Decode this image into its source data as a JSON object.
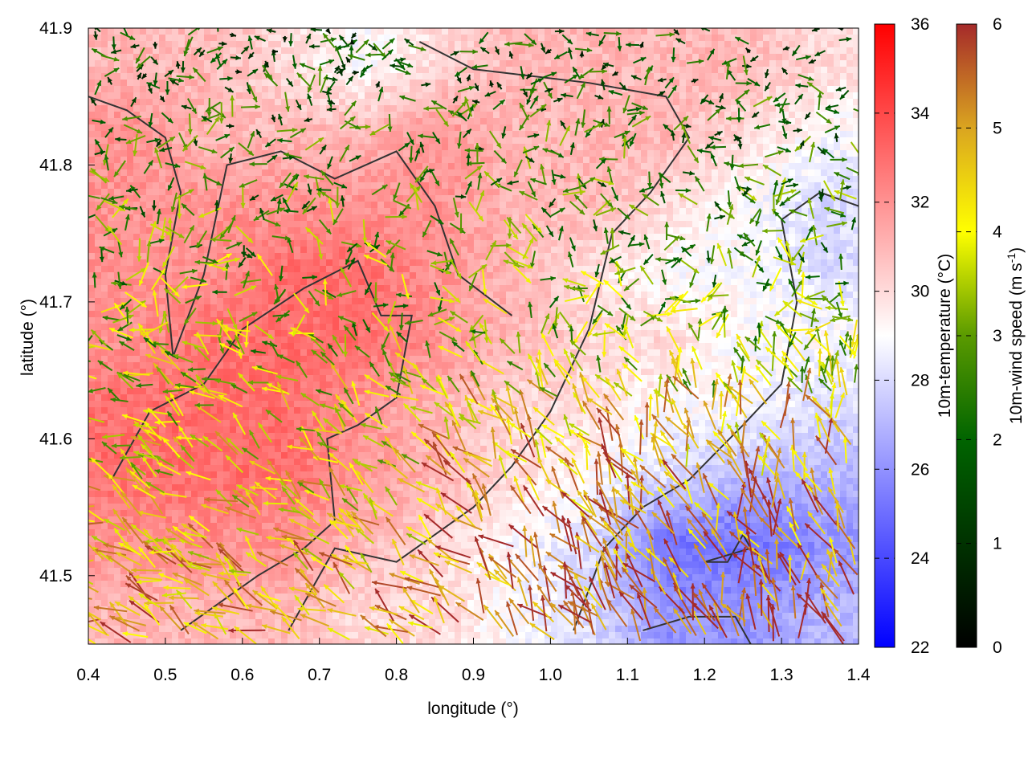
{
  "chart_data": {
    "type": "heatmap",
    "overlay": "vector",
    "xlabel": "longitude (°)",
    "ylabel": "latitude (°)",
    "xlim": [
      0.4,
      1.4
    ],
    "ylim": [
      41.45,
      41.9
    ],
    "xticks": [
      "0.4",
      "0.5",
      "0.6",
      "0.7",
      "0.8",
      "0.9",
      "1.0",
      "1.1",
      "1.2",
      "1.3",
      "1.4"
    ],
    "yticks": [
      "41.5",
      "41.6",
      "41.7",
      "41.8",
      "41.9"
    ],
    "temperature": {
      "label": "10m-temperature (°C)",
      "range": [
        22,
        36
      ],
      "ticks": [
        "22",
        "24",
        "26",
        "28",
        "30",
        "32",
        "34",
        "36"
      ],
      "colors": [
        "#0000ff",
        "#ffffff",
        "#ff0000"
      ],
      "grid_lon": [
        0.45,
        0.55,
        0.65,
        0.75,
        0.85,
        0.95,
        1.05,
        1.15,
        1.25,
        1.35
      ],
      "grid_lat": [
        41.875,
        41.825,
        41.775,
        41.725,
        41.675,
        41.625,
        41.575,
        41.525,
        41.475
      ],
      "values": [
        [
          31,
          31,
          30,
          29,
          30,
          31,
          31,
          31,
          31,
          30
        ],
        [
          32,
          31,
          31,
          31,
          32,
          31,
          31,
          31,
          30,
          29
        ],
        [
          32,
          32,
          32,
          32,
          32,
          31,
          31,
          30,
          29,
          28
        ],
        [
          32,
          32,
          33,
          33,
          32,
          31,
          30,
          29,
          29,
          28
        ],
        [
          32,
          33,
          33,
          33,
          32,
          31,
          30,
          30,
          29,
          29
        ],
        [
          33,
          33,
          33,
          32,
          31,
          30,
          30,
          29,
          29,
          28
        ],
        [
          33,
          33,
          33,
          32,
          31,
          30,
          29,
          28,
          27,
          27
        ],
        [
          32,
          32,
          32,
          31,
          30,
          29,
          28,
          25,
          25,
          26
        ],
        [
          31,
          31,
          31,
          30,
          30,
          29,
          28,
          26,
          26,
          27
        ]
      ]
    },
    "wind": {
      "label_main": "10m-wind speed (m s",
      "label_exp": "-1",
      "label_end": ")",
      "range": [
        0,
        6
      ],
      "ticks": [
        "0",
        "1",
        "2",
        "3",
        "4",
        "5",
        "6"
      ],
      "colors": [
        "#000000",
        "#006400",
        "#5a9a00",
        "#ffff00",
        "#daa520",
        "#a52a2a"
      ]
    },
    "contours": [
      [
        [
          0.4,
          41.85
        ],
        [
          0.45,
          41.84
        ],
        [
          0.5,
          41.82
        ],
        [
          0.52,
          41.78
        ],
        [
          0.5,
          41.72
        ],
        [
          0.51,
          41.66
        ],
        [
          0.55,
          41.72
        ],
        [
          0.58,
          41.8
        ],
        [
          0.65,
          41.81
        ],
        [
          0.72,
          41.79
        ],
        [
          0.8,
          41.81
        ],
        [
          0.85,
          41.77
        ],
        [
          0.88,
          41.72
        ],
        [
          0.95,
          41.69
        ]
      ],
      [
        [
          0.43,
          41.57
        ],
        [
          0.48,
          41.62
        ],
        [
          0.55,
          41.64
        ],
        [
          0.6,
          41.68
        ],
        [
          0.68,
          41.71
        ],
        [
          0.75,
          41.73
        ],
        [
          0.78,
          41.69
        ],
        [
          0.82,
          41.69
        ],
        [
          0.8,
          41.63
        ],
        [
          0.75,
          41.61
        ],
        [
          0.71,
          41.6
        ],
        [
          0.72,
          41.54
        ],
        [
          0.68,
          41.52
        ],
        [
          0.62,
          41.5
        ],
        [
          0.57,
          41.48
        ],
        [
          0.52,
          41.46
        ]
      ],
      [
        [
          0.66,
          41.46
        ],
        [
          0.72,
          41.52
        ],
        [
          0.8,
          41.51
        ],
        [
          0.85,
          41.53
        ],
        [
          0.9,
          41.55
        ],
        [
          0.95,
          41.58
        ],
        [
          1.0,
          41.62
        ],
        [
          1.05,
          41.68
        ],
        [
          1.08,
          41.75
        ],
        [
          1.13,
          41.78
        ],
        [
          1.18,
          41.82
        ],
        [
          1.15,
          41.85
        ],
        [
          1.05,
          41.86
        ],
        [
          0.9,
          41.87
        ],
        [
          0.83,
          41.89
        ]
      ],
      [
        [
          1.03,
          41.46
        ],
        [
          1.07,
          41.52
        ],
        [
          1.12,
          41.55
        ],
        [
          1.18,
          41.57
        ],
        [
          1.25,
          41.61
        ],
        [
          1.3,
          41.64
        ],
        [
          1.32,
          41.7
        ],
        [
          1.3,
          41.76
        ],
        [
          1.35,
          41.78
        ],
        [
          1.4,
          41.77
        ]
      ],
      [
        [
          1.2,
          41.51
        ],
        [
          1.23,
          41.51
        ],
        [
          1.25,
          41.53
        ],
        [
          1.26,
          41.52
        ],
        [
          1.2,
          41.51
        ]
      ],
      [
        [
          1.12,
          41.46
        ],
        [
          1.18,
          41.47
        ],
        [
          1.24,
          41.47
        ],
        [
          1.26,
          41.45
        ]
      ]
    ]
  }
}
